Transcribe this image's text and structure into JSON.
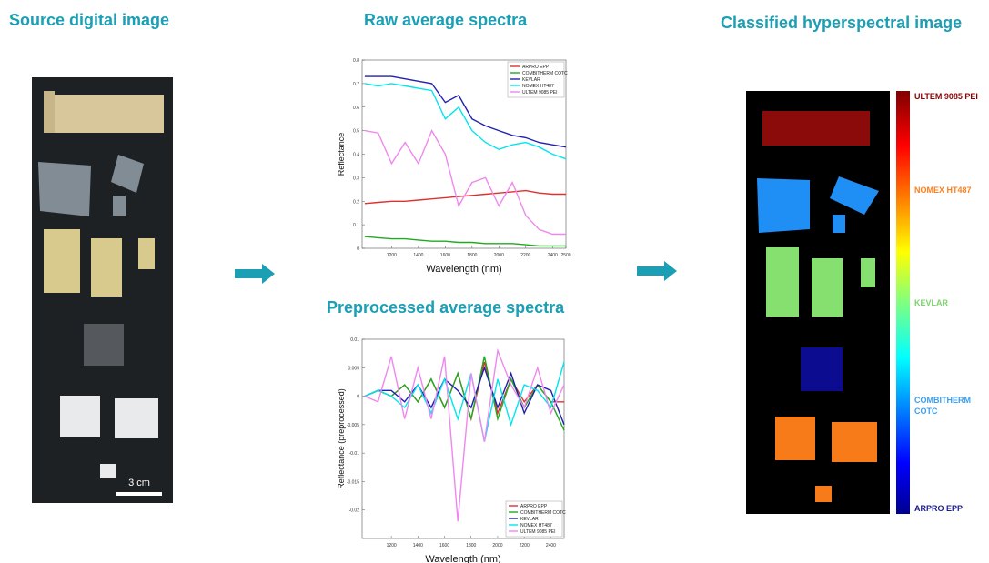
{
  "headings": {
    "source": "Source digital image",
    "raw": "Raw average spectra",
    "preprocessed": "Preprocessed average spectra",
    "classified": "Classified hyperspectral image"
  },
  "scale_bar": "3 cm",
  "colorbar_labels": [
    {
      "text": "ULTEM 9085 PEI",
      "color": "#8b0000"
    },
    {
      "text": "NOMEX HT487",
      "color": "#ff7f1a"
    },
    {
      "text": "KEVLAR",
      "color": "#7bd36b"
    },
    {
      "text": "COMBITHERM COTC",
      "color": "#3aa0f0"
    },
    {
      "text": "ARPRO EPP",
      "color": "#1a1a8f"
    }
  ],
  "chart_data": [
    {
      "type": "line",
      "x_label": "Wavelength (nm)",
      "y_label": "Reflectance",
      "legend": "upper right",
      "x": [
        1000,
        1100,
        1200,
        1300,
        1400,
        1500,
        1600,
        1700,
        1800,
        1900,
        2000,
        2100,
        2200,
        2300,
        2400,
        2500
      ],
      "xlim": [
        980,
        2500
      ],
      "xticks": [
        1200,
        1400,
        1600,
        1800,
        2000,
        2200,
        2400,
        2500
      ],
      "ylim": [
        0,
        0.8
      ],
      "yticks": [
        0,
        0.1,
        0.2,
        0.3,
        0.4,
        0.5,
        0.6,
        0.7,
        0.8
      ],
      "series": [
        {
          "name": "ARPRO EPP",
          "color": "#e03030",
          "values": [
            0.19,
            0.195,
            0.2,
            0.2,
            0.205,
            0.21,
            0.215,
            0.22,
            0.225,
            0.23,
            0.235,
            0.24,
            0.245,
            0.235,
            0.23,
            0.23
          ]
        },
        {
          "name": "COMBITHERM COTC",
          "color": "#1faa1f",
          "values": [
            0.05,
            0.045,
            0.04,
            0.04,
            0.035,
            0.03,
            0.03,
            0.025,
            0.025,
            0.02,
            0.02,
            0.02,
            0.015,
            0.01,
            0.01,
            0.01
          ]
        },
        {
          "name": "KEVLAR",
          "color": "#2020b0",
          "values": [
            0.73,
            0.73,
            0.73,
            0.72,
            0.71,
            0.7,
            0.62,
            0.65,
            0.55,
            0.52,
            0.5,
            0.48,
            0.47,
            0.45,
            0.44,
            0.43
          ]
        },
        {
          "name": "NOMEX  HT487",
          "color": "#00e5ee",
          "values": [
            0.7,
            0.69,
            0.7,
            0.69,
            0.68,
            0.67,
            0.55,
            0.6,
            0.5,
            0.45,
            0.42,
            0.44,
            0.45,
            0.43,
            0.4,
            0.38
          ]
        },
        {
          "name": "ULTEM 9085 PEI",
          "color": "#ee88ee",
          "values": [
            0.5,
            0.49,
            0.36,
            0.45,
            0.36,
            0.5,
            0.4,
            0.18,
            0.28,
            0.3,
            0.18,
            0.28,
            0.14,
            0.08,
            0.06,
            0.06
          ]
        }
      ]
    },
    {
      "type": "line",
      "x_label": "Wavelength (nm)",
      "y_label": "Reflectance (preprocessed)",
      "legend": "lower right",
      "x": [
        1000,
        1100,
        1200,
        1300,
        1400,
        1500,
        1600,
        1700,
        1800,
        1900,
        2000,
        2100,
        2200,
        2300,
        2400,
        2500
      ],
      "xlim": [
        980,
        2500
      ],
      "xticks": [
        1200,
        1400,
        1600,
        1800,
        2000,
        2200,
        2400
      ],
      "ylim": [
        -0.025,
        0.01
      ],
      "yticks": [
        -0.02,
        -0.015,
        -0.01,
        -0.005,
        0,
        0.005,
        0.01
      ],
      "series": [
        {
          "name": "ARPRO EPP",
          "color": "#e03030",
          "values": [
            0,
            0.001,
            0,
            0.002,
            -0.001,
            0.003,
            -0.002,
            0.004,
            -0.004,
            0.006,
            -0.003,
            0.003,
            -0.001,
            0.002,
            -0.001,
            -0.001
          ]
        },
        {
          "name": "COMBITHERM COTC",
          "color": "#1faa1f",
          "values": [
            0,
            0.001,
            0,
            0.002,
            -0.001,
            0.003,
            -0.002,
            0.004,
            -0.004,
            0.007,
            -0.004,
            0.003,
            -0.002,
            0.002,
            -0.001,
            -0.006
          ]
        },
        {
          "name": "KEVLAR",
          "color": "#2020b0",
          "values": [
            0,
            0.001,
            0.001,
            -0.001,
            0.002,
            -0.002,
            0.003,
            0.001,
            -0.002,
            0.005,
            -0.002,
            0.004,
            -0.003,
            0.002,
            0.001,
            -0.005
          ]
        },
        {
          "name": "NOMEX  HT487",
          "color": "#00e5ee",
          "values": [
            0,
            0.001,
            0,
            -0.002,
            0.002,
            -0.003,
            0.003,
            -0.004,
            0.004,
            -0.008,
            0.003,
            -0.005,
            0.002,
            0.001,
            -0.002,
            0.006
          ]
        },
        {
          "name": "ULTEM 9085 PEI",
          "color": "#ee88ee",
          "values": [
            0,
            -0.001,
            0.007,
            -0.004,
            0.005,
            -0.004,
            0.007,
            -0.022,
            0.004,
            -0.008,
            0.008,
            0.002,
            -0.002,
            0.005,
            -0.003,
            0.002
          ]
        }
      ]
    }
  ]
}
